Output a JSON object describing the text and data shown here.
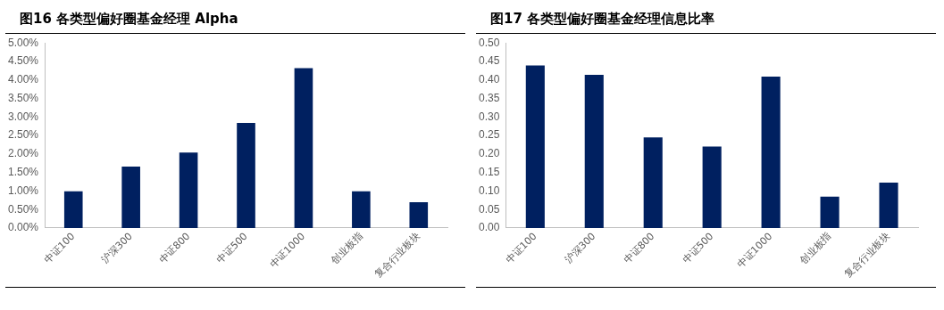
{
  "chart_data": [
    {
      "type": "bar",
      "title": "图16 各类型偏好圈基金经理 Alpha",
      "categories": [
        "中证100",
        "沪深300",
        "中证800",
        "中证500",
        "中证1000",
        "创业板指",
        "复合行业板块"
      ],
      "values": [
        0.99,
        1.66,
        2.04,
        2.84,
        4.32,
        0.99,
        0.7
      ],
      "color": "#002060",
      "ylim": [
        0,
        5
      ],
      "yticks": [
        {
          "value": 0,
          "label": "0.00%"
        },
        {
          "value": 0.5,
          "label": "0.50%"
        },
        {
          "value": 1,
          "label": "1.00%"
        },
        {
          "value": 1.5,
          "label": "1.50%"
        },
        {
          "value": 2,
          "label": "2.00%"
        },
        {
          "value": 2.5,
          "label": "2.50%"
        },
        {
          "value": 3,
          "label": "3.00%"
        },
        {
          "value": 3.5,
          "label": "3.50%"
        },
        {
          "value": 4,
          "label": "4.00%"
        },
        {
          "value": 4.5,
          "label": "4.50%"
        },
        {
          "value": 5,
          "label": "5.00%"
        }
      ],
      "grid": false,
      "legend": false
    },
    {
      "type": "bar",
      "title": "图17 各类型偏好圈基金经理信息比率",
      "categories": [
        "中证100",
        "沪深300",
        "中证800",
        "中证500",
        "中证1000",
        "创业板指",
        "复合行业板块"
      ],
      "values": [
        0.439,
        0.414,
        0.245,
        0.22,
        0.409,
        0.085,
        0.123
      ],
      "color": "#002060",
      "ylim": [
        0,
        0.5
      ],
      "yticks": [
        {
          "value": 0,
          "label": "0.00"
        },
        {
          "value": 0.05,
          "label": "0.05"
        },
        {
          "value": 0.1,
          "label": "0.10"
        },
        {
          "value": 0.15,
          "label": "0.15"
        },
        {
          "value": 0.2,
          "label": "0.20"
        },
        {
          "value": 0.25,
          "label": "0.25"
        },
        {
          "value": 0.3,
          "label": "0.30"
        },
        {
          "value": 0.35,
          "label": "0.35"
        },
        {
          "value": 0.4,
          "label": "0.40"
        },
        {
          "value": 0.45,
          "label": "0.45"
        },
        {
          "value": 0.5,
          "label": "0.50"
        }
      ],
      "grid": false,
      "legend": false
    }
  ]
}
